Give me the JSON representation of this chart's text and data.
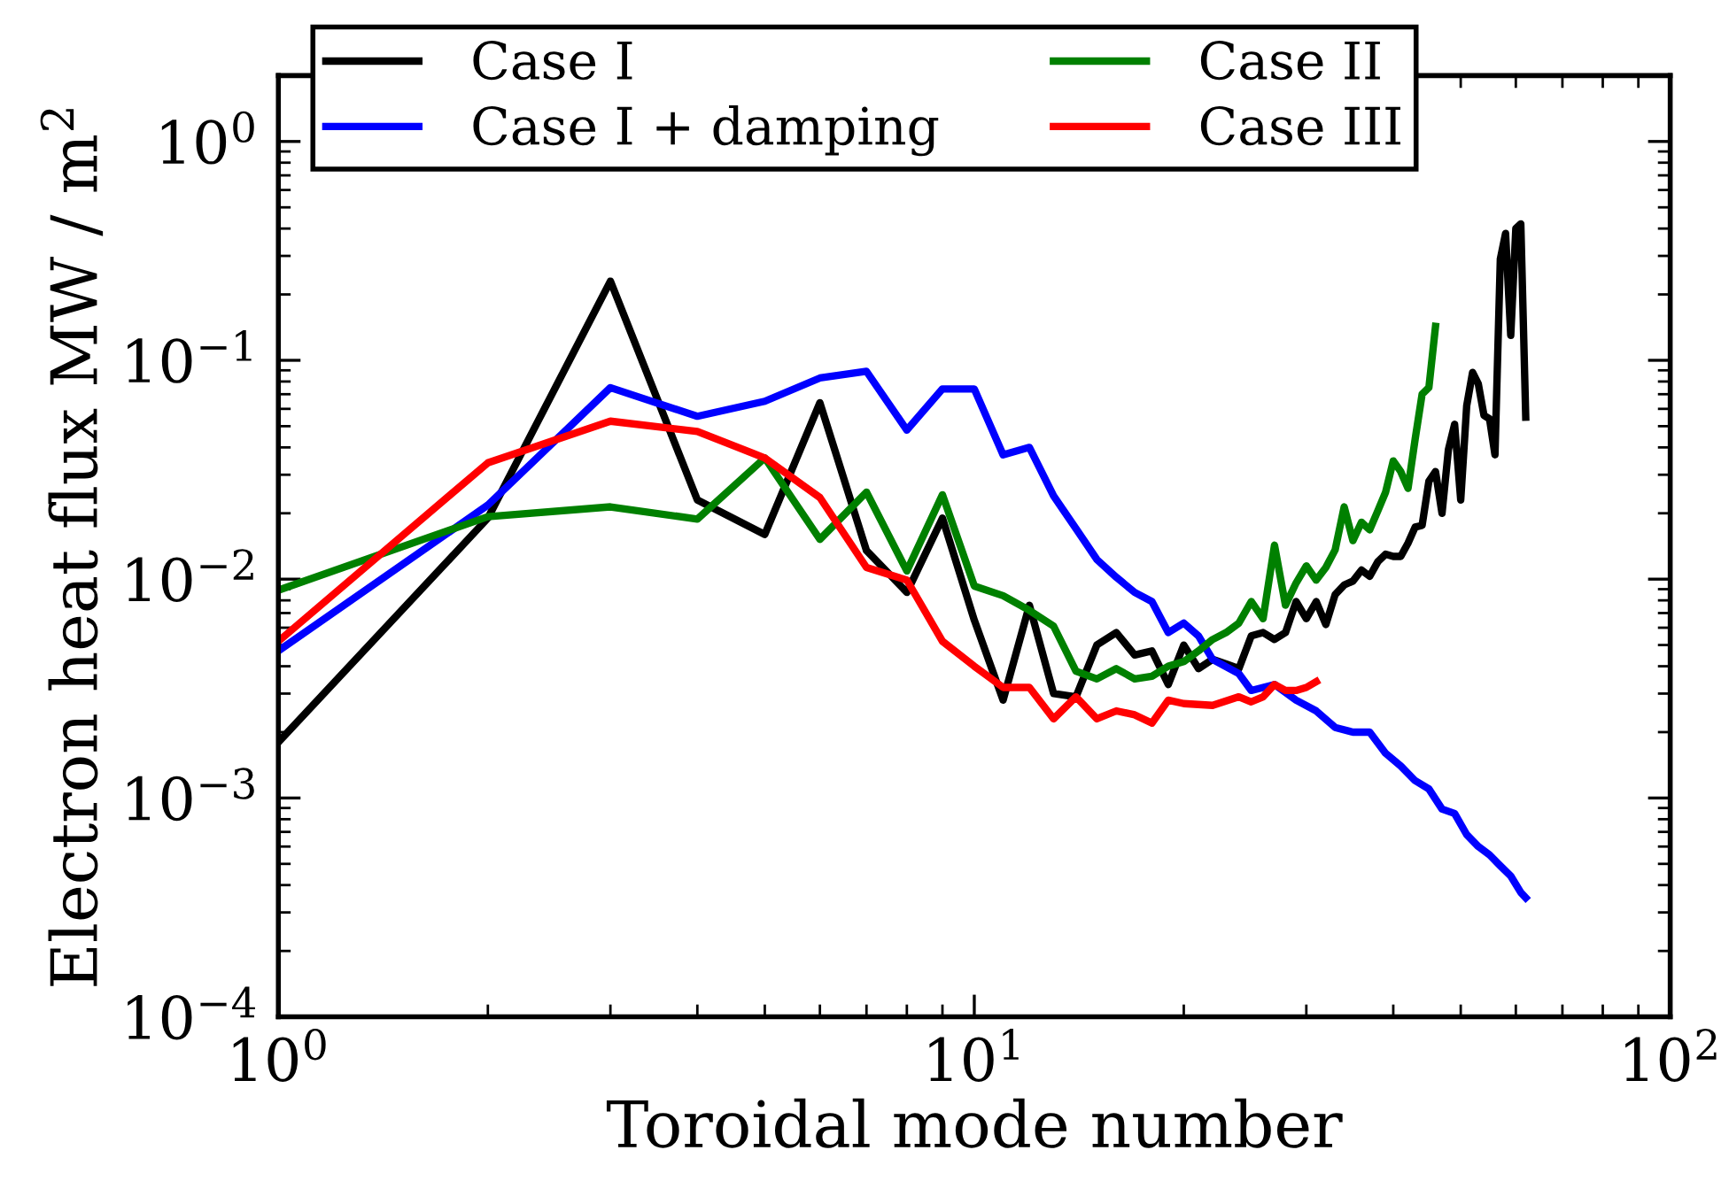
{
  "chart_data": {
    "type": "line",
    "xlabel": "Toroidal mode number",
    "ylabel": "Electron heat flux MW / m$^{2}$",
    "log": "xy",
    "grid": false,
    "legend": "top",
    "marker": "none",
    "line_style": "solid",
    "xlim": [
      1,
      100
    ],
    "ylim": [
      0.0001,
      2
    ],
    "xticks": [
      {
        "value": 1,
        "label": "10$^{0}$"
      },
      {
        "value": 10,
        "label": "10$^{1}$"
      },
      {
        "value": 100,
        "label": "10$^{2}$"
      }
    ],
    "yticks": [
      {
        "value": 0.0001,
        "label": "10$^{−4}$"
      },
      {
        "value": 0.001,
        "label": "10$^{−3}$"
      },
      {
        "value": 0.01,
        "label": "10$^{−2}$"
      },
      {
        "value": 0.1,
        "label": "10$^{−1}$"
      },
      {
        "value": 1,
        "label": "10$^{0}$"
      }
    ],
    "series": [
      {
        "name": "Case I",
        "color": "#000000",
        "x": [
          1,
          2,
          3,
          4,
          5,
          6,
          7,
          8,
          9,
          10,
          11,
          12,
          13,
          14,
          15,
          16,
          17,
          18,
          19,
          20,
          21,
          22,
          23,
          24,
          25,
          26,
          27,
          28,
          29,
          30,
          31,
          32,
          33,
          34,
          35,
          36,
          37,
          38,
          39,
          40,
          41,
          42,
          43,
          44,
          45,
          46,
          47,
          48,
          49,
          50,
          51,
          52,
          53,
          54,
          55,
          56,
          57,
          58,
          59,
          60,
          61,
          62
        ],
        "values": [
          0.0018,
          0.019,
          0.23,
          0.023,
          0.016,
          0.064,
          0.0135,
          0.0087,
          0.019,
          0.0065,
          0.0028,
          0.0076,
          0.003,
          0.0029,
          0.005,
          0.0057,
          0.0045,
          0.0047,
          0.0033,
          0.005,
          0.0039,
          0.0043,
          0.0041,
          0.0039,
          0.0055,
          0.0057,
          0.0053,
          0.0057,
          0.0079,
          0.0066,
          0.0079,
          0.0062,
          0.0085,
          0.0094,
          0.0098,
          0.011,
          0.0103,
          0.012,
          0.013,
          0.0127,
          0.0127,
          0.0146,
          0.0173,
          0.0176,
          0.028,
          0.031,
          0.02,
          0.039,
          0.051,
          0.023,
          0.062,
          0.088,
          0.078,
          0.056,
          0.054,
          0.037,
          0.29,
          0.38,
          0.13,
          0.4,
          0.42,
          0.055
        ]
      },
      {
        "name": "Case I + damping",
        "color": "#0000ff",
        "x": [
          1,
          2,
          3,
          4,
          5,
          6,
          7,
          8,
          9,
          10,
          11,
          12,
          13,
          14,
          15,
          16,
          17,
          18,
          19,
          20,
          21,
          22,
          24,
          25,
          27,
          29,
          31,
          33,
          35,
          37,
          39,
          41,
          43,
          45,
          47,
          49,
          51,
          53,
          55,
          57,
          59,
          61,
          62
        ],
        "values": [
          0.0047,
          0.0218,
          0.075,
          0.0555,
          0.065,
          0.083,
          0.089,
          0.048,
          0.074,
          0.074,
          0.037,
          0.04,
          0.024,
          0.017,
          0.0123,
          0.0102,
          0.0087,
          0.0079,
          0.0057,
          0.0063,
          0.0055,
          0.0043,
          0.0037,
          0.0031,
          0.0033,
          0.0028,
          0.0025,
          0.0021,
          0.002,
          0.002,
          0.0016,
          0.0014,
          0.0012,
          0.0011,
          0.00089,
          0.00085,
          0.00068,
          0.0006,
          0.00055,
          0.00049,
          0.00044,
          0.00037,
          0.00035
        ]
      },
      {
        "name": "Case II",
        "color": "#008000",
        "x": [
          1,
          2,
          3,
          4,
          5,
          6,
          7,
          8,
          9,
          10,
          11,
          12,
          13,
          14,
          15,
          16,
          17,
          18,
          19,
          20,
          21,
          22,
          23,
          24,
          25,
          26,
          27,
          28,
          29,
          30,
          31,
          32,
          33,
          34,
          35,
          36,
          37,
          38,
          39,
          40,
          41,
          42,
          43,
          44,
          45,
          46
        ],
        "values": [
          0.0089,
          0.0193,
          0.0214,
          0.0188,
          0.0358,
          0.0152,
          0.025,
          0.0109,
          0.0243,
          0.0093,
          0.0084,
          0.0072,
          0.0061,
          0.0038,
          0.0035,
          0.0039,
          0.0035,
          0.0036,
          0.004,
          0.0042,
          0.0047,
          0.0053,
          0.0057,
          0.0063,
          0.0079,
          0.0066,
          0.0143,
          0.0076,
          0.0096,
          0.0115,
          0.0099,
          0.0113,
          0.0136,
          0.0214,
          0.015,
          0.0182,
          0.0168,
          0.0205,
          0.025,
          0.0347,
          0.031,
          0.026,
          0.0436,
          0.07,
          0.075,
          0.143
        ]
      },
      {
        "name": "Case III",
        "color": "#ff0000",
        "x": [
          1,
          2,
          3,
          4,
          5,
          6,
          7,
          8,
          9,
          10,
          11,
          12,
          13,
          14,
          15,
          16,
          17,
          18,
          19,
          20,
          22,
          24,
          25,
          26,
          27,
          28,
          29,
          30,
          31
        ],
        "values": [
          0.0052,
          0.034,
          0.0527,
          0.0473,
          0.0358,
          0.0236,
          0.0113,
          0.0099,
          0.0052,
          0.004,
          0.0032,
          0.0032,
          0.0023,
          0.0029,
          0.0023,
          0.0025,
          0.0024,
          0.0022,
          0.0028,
          0.0027,
          0.00265,
          0.0029,
          0.00275,
          0.0029,
          0.0033,
          0.0031,
          0.0031,
          0.0032,
          0.0034
        ]
      }
    ]
  }
}
